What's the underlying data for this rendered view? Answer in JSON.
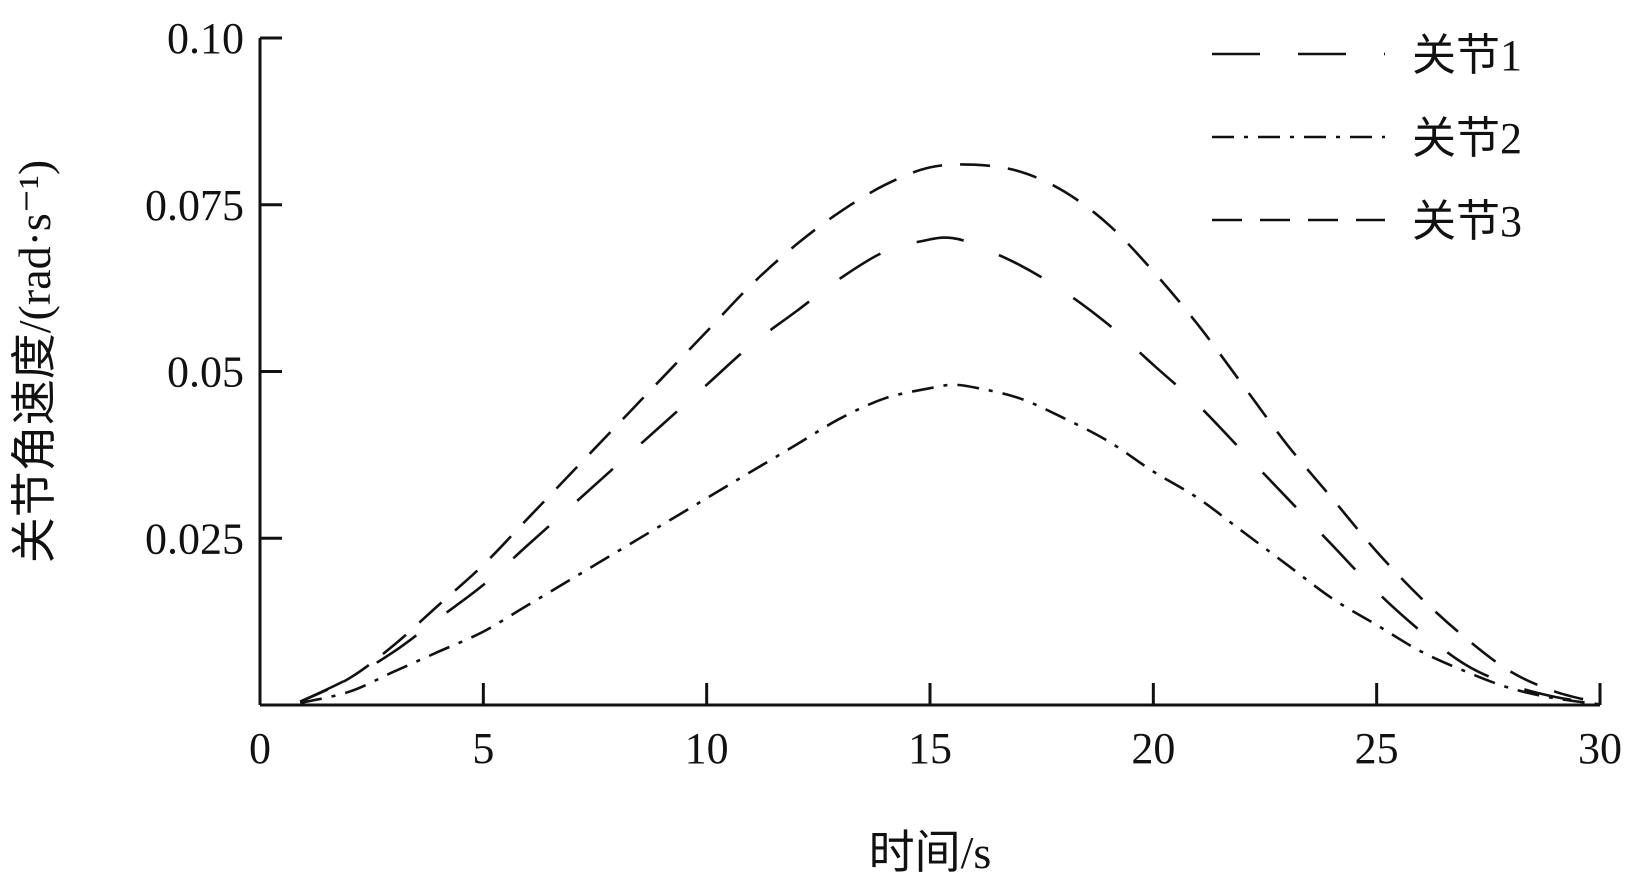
{
  "chart_data": {
    "type": "line",
    "title": "",
    "xlabel": "时间/s",
    "ylabel": "关节角速度/(rad·s⁻¹)",
    "xlim": [
      0,
      30
    ],
    "ylim": [
      0,
      0.1
    ],
    "xticks": [
      0,
      5,
      10,
      15,
      20,
      25,
      30
    ],
    "xtick_labels": [
      "0",
      "5",
      "10",
      "15",
      "20",
      "25",
      "30"
    ],
    "yticks": [
      0.025,
      0.05,
      0.075,
      0.1
    ],
    "ytick_labels": [
      "0.025",
      "0.05",
      "0.075",
      "0.10"
    ],
    "grid": false,
    "legend_position": "top-right",
    "series": [
      {
        "name": "关节1",
        "line_style": "long-dash",
        "x": [
          0.9,
          2,
          3,
          4,
          5,
          6,
          7,
          8,
          9,
          10,
          11,
          12,
          13,
          14,
          15,
          15.5,
          16,
          17,
          18,
          19,
          20,
          21,
          22,
          23,
          24,
          25,
          26,
          27,
          28,
          29,
          30
        ],
        "y": [
          0.0005,
          0.004,
          0.008,
          0.013,
          0.018,
          0.024,
          0.03,
          0.036,
          0.042,
          0.048,
          0.054,
          0.059,
          0.064,
          0.068,
          0.0698,
          0.07,
          0.069,
          0.066,
          0.062,
          0.057,
          0.051,
          0.045,
          0.038,
          0.031,
          0.024,
          0.017,
          0.011,
          0.006,
          0.003,
          0.0012,
          0.0002
        ]
      },
      {
        "name": "关节2",
        "line_style": "dash-dot",
        "x": [
          0.9,
          2,
          3,
          4,
          5,
          6,
          7,
          8,
          9,
          10,
          11,
          12,
          13,
          14,
          15,
          15.5,
          16,
          17,
          18,
          19,
          20,
          21,
          22,
          23,
          24,
          25,
          26,
          27,
          28,
          29,
          30
        ],
        "y": [
          0.0003,
          0.002,
          0.005,
          0.008,
          0.011,
          0.015,
          0.019,
          0.023,
          0.027,
          0.031,
          0.035,
          0.039,
          0.043,
          0.046,
          0.0475,
          0.048,
          0.0476,
          0.046,
          0.043,
          0.0395,
          0.035,
          0.031,
          0.026,
          0.021,
          0.016,
          0.012,
          0.008,
          0.005,
          0.0025,
          0.001,
          0.0001
        ]
      },
      {
        "name": "关节3",
        "line_style": "dash",
        "x": [
          0.9,
          2,
          3,
          4,
          5,
          6,
          7,
          8,
          9,
          10,
          11,
          12,
          13,
          14,
          15,
          16,
          17,
          18,
          19,
          20,
          21,
          22,
          23,
          24,
          25,
          26,
          27,
          28,
          29,
          30
        ],
        "y": [
          0.0005,
          0.004,
          0.009,
          0.015,
          0.021,
          0.028,
          0.035,
          0.042,
          0.049,
          0.056,
          0.063,
          0.069,
          0.074,
          0.078,
          0.0806,
          0.081,
          0.08,
          0.077,
          0.072,
          0.065,
          0.057,
          0.048,
          0.039,
          0.031,
          0.023,
          0.016,
          0.01,
          0.005,
          0.002,
          0.0003
        ]
      }
    ]
  },
  "colors": {
    "line": "#111111",
    "axis": "#111111",
    "background": "#ffffff"
  }
}
